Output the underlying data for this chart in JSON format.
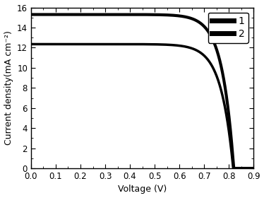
{
  "title": "",
  "xlabel": "Voltage (V)",
  "ylabel": "Current density(mA cm⁻²)",
  "xlim": [
    0.0,
    0.9
  ],
  "ylim": [
    0,
    16
  ],
  "xticks": [
    0.0,
    0.1,
    0.2,
    0.3,
    0.4,
    0.5,
    0.6,
    0.7,
    0.8,
    0.9
  ],
  "yticks": [
    0,
    2,
    4,
    6,
    8,
    10,
    12,
    14,
    16
  ],
  "curve1": {
    "Jsc": 15.3,
    "Voc": 0.82,
    "n": 1.8,
    "Vt": 0.026,
    "label": "1",
    "lw": 3.0
  },
  "curve2": {
    "Jsc": 12.35,
    "Voc": 0.818,
    "n": 1.9,
    "Vt": 0.026,
    "label": "2",
    "lw": 2.5
  },
  "line_color": "#000000",
  "background_color": "#ffffff",
  "legend_loc": "upper right",
  "font_size": 9
}
